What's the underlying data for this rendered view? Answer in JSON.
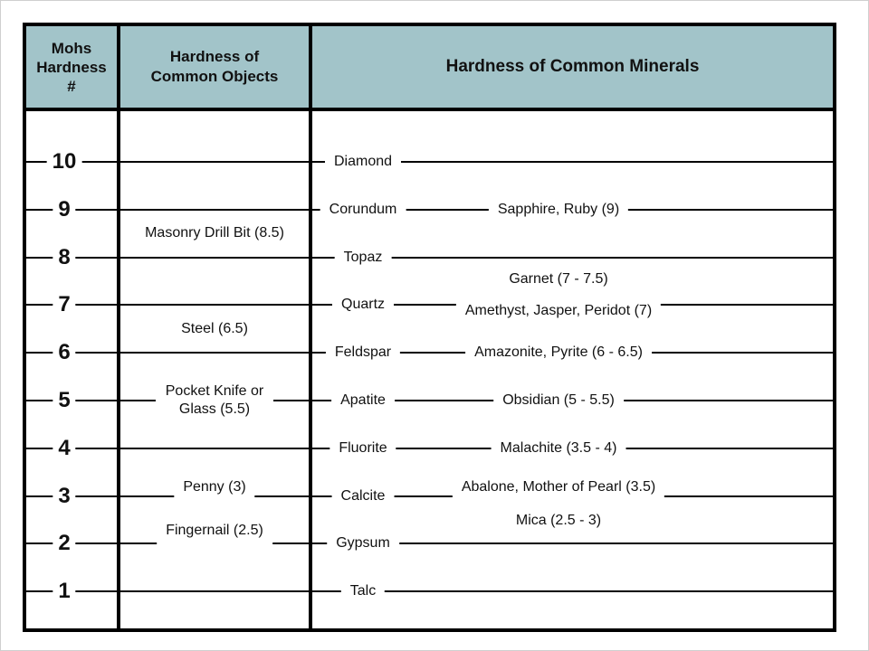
{
  "header": {
    "col_scale": "Mohs\nHardness\n#",
    "col_objects": "Hardness of\nCommon Objects",
    "col_minerals": "Hardness of Common Minerals"
  },
  "colors": {
    "header_bg": "#a2c4c9",
    "border": "#000000",
    "background": "#ffffff"
  },
  "chart_data": {
    "type": "table",
    "title": "Hardness of Common Minerals",
    "scale": {
      "label": "Mohs Hardness #",
      "min": 1,
      "max": 10,
      "ticks": [
        10,
        9,
        8,
        7,
        6,
        5,
        4,
        3,
        2,
        1
      ]
    },
    "common_objects": [
      {
        "id": "masonry-drill-bit",
        "label": "Masonry Drill Bit (8.5)",
        "hardness": 8.5
      },
      {
        "id": "steel",
        "label": "Steel (6.5)",
        "hardness": 6.5
      },
      {
        "id": "pocket-knife",
        "label": "Pocket Knife or Glass (5.5)",
        "hardness": 5.5
      },
      {
        "id": "penny",
        "label": "Penny (3)",
        "hardness": 3
      },
      {
        "id": "fingernail",
        "label": "Fingernail (2.5)",
        "hardness": 2.5
      }
    ],
    "minerals": [
      {
        "id": "diamond",
        "name": "Diamond",
        "hardness": 10
      },
      {
        "id": "corundum",
        "name": "Corundum",
        "hardness": 9
      },
      {
        "id": "topaz",
        "name": "Topaz",
        "hardness": 8
      },
      {
        "id": "quartz",
        "name": "Quartz",
        "hardness": 7
      },
      {
        "id": "feldspar",
        "name": "Feldspar",
        "hardness": 6
      },
      {
        "id": "apatite",
        "name": "Apatite",
        "hardness": 5
      },
      {
        "id": "fluorite",
        "name": "Fluorite",
        "hardness": 4
      },
      {
        "id": "calcite",
        "name": "Calcite",
        "hardness": 3
      },
      {
        "id": "gypsum",
        "name": "Gypsum",
        "hardness": 2
      },
      {
        "id": "talc",
        "name": "Talc",
        "hardness": 1
      }
    ],
    "related_minerals": [
      {
        "id": "sapphire-ruby",
        "label": "Sapphire, Ruby (9)",
        "hardness": 9
      },
      {
        "id": "garnet",
        "label": "Garnet (7 - 7.5)",
        "hardness": 7.5
      },
      {
        "id": "amethyst-jasper-peridot",
        "label": "Amethyst, Jasper, Peridot (7)",
        "hardness": 7
      },
      {
        "id": "amazonite-pyrite",
        "label": "Amazonite, Pyrite (6 - 6.5)",
        "hardness": 6
      },
      {
        "id": "obsidian",
        "label": "Obsidian (5 - 5.5)",
        "hardness": 5
      },
      {
        "id": "malachite",
        "label": "Malachite (3.5 - 4)",
        "hardness": 4
      },
      {
        "id": "abalone-mother-of-pearl",
        "label": "Abalone, Mother of Pearl (3.5)",
        "hardness": 3.5
      },
      {
        "id": "mica",
        "label": "Mica (2.5 - 3)",
        "hardness": 2.75
      }
    ]
  }
}
